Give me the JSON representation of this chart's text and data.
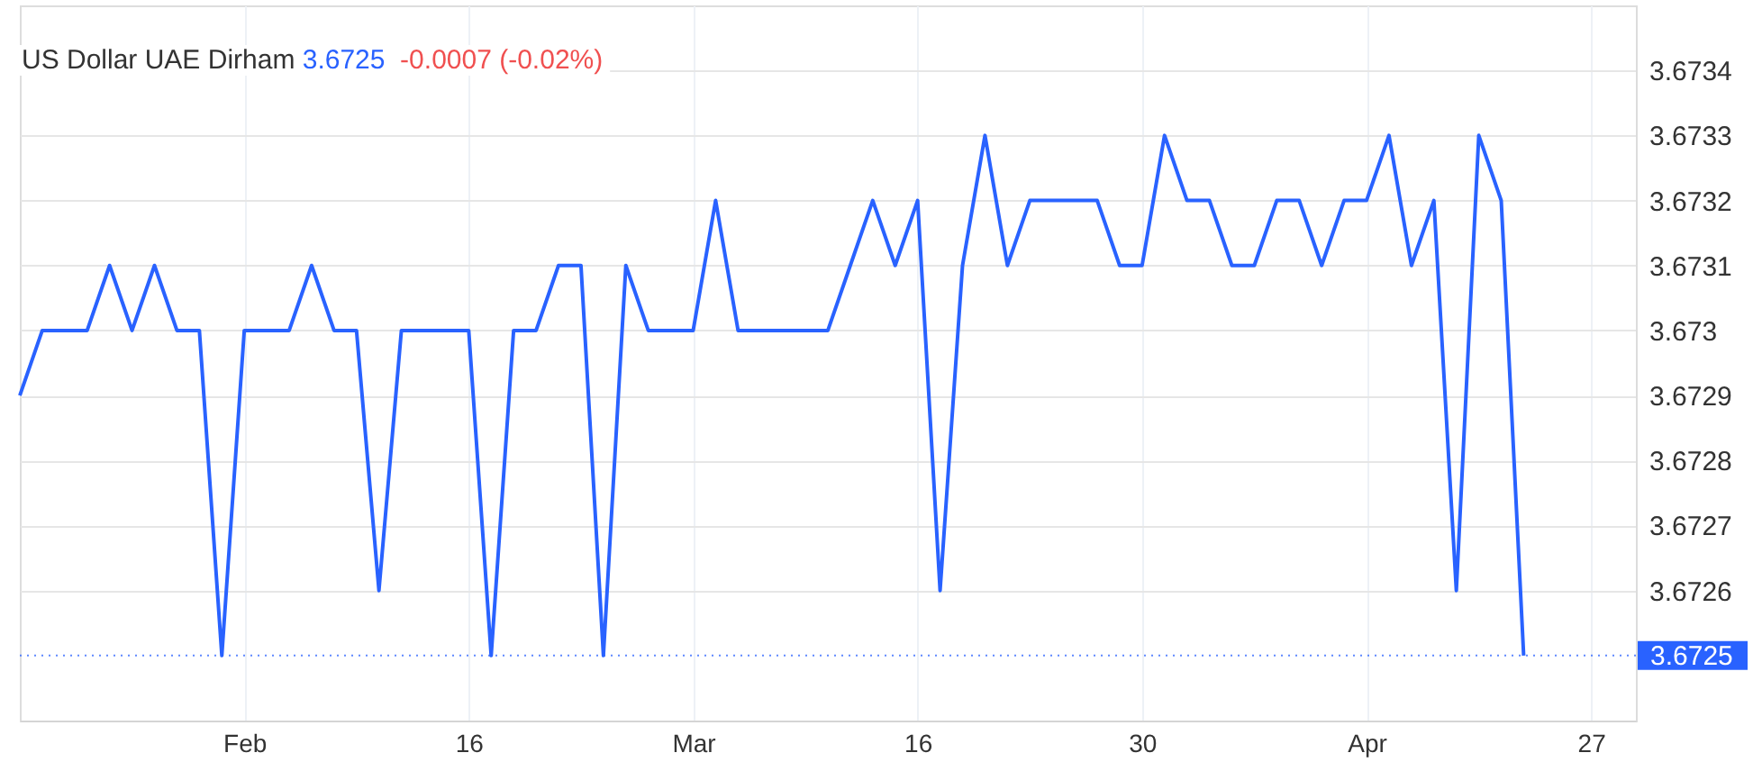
{
  "chart_data": {
    "type": "line",
    "title": "US Dollar UAE Dirham",
    "annotations": [
      "3.6725",
      "-0.0007 (-0.02%)"
    ],
    "categories": [
      null,
      null,
      null,
      null,
      null,
      null,
      null,
      null,
      null,
      null,
      "Feb",
      null,
      null,
      null,
      null,
      null,
      null,
      null,
      null,
      null,
      "16",
      null,
      null,
      null,
      null,
      null,
      null,
      null,
      null,
      null,
      "Mar",
      null,
      null,
      null,
      null,
      null,
      null,
      null,
      null,
      null,
      "16",
      null,
      null,
      null,
      null,
      null,
      null,
      null,
      null,
      null,
      "30",
      null,
      null,
      null,
      null,
      null,
      null,
      null,
      null,
      null,
      "Apr",
      null,
      null,
      null,
      null,
      null,
      null,
      null,
      null,
      null,
      "27"
    ],
    "series": [
      {
        "color": "#2962ff",
        "values": [
          3.6729,
          3.673,
          3.673,
          3.673,
          3.6731,
          3.673,
          3.6731,
          3.673,
          3.673,
          3.6725,
          3.673,
          3.673,
          3.673,
          3.6731,
          3.673,
          3.673,
          3.6726,
          3.673,
          3.673,
          3.673,
          3.673,
          3.6725,
          3.673,
          3.673,
          3.6731,
          3.6731,
          3.6725,
          3.6731,
          3.673,
          3.673,
          3.673,
          3.6732,
          3.673,
          3.673,
          3.673,
          3.673,
          3.673,
          3.6731,
          3.6732,
          3.6731,
          3.6732,
          3.6726,
          3.6731,
          3.6733,
          3.6731,
          3.6732,
          3.6732,
          3.6732,
          3.6732,
          3.6731,
          3.6731,
          3.6733,
          3.6732,
          3.6732,
          3.6731,
          3.6731,
          3.6732,
          3.6732,
          3.6731,
          3.6732,
          3.6732,
          3.6733,
          3.6731,
          3.6732,
          3.6726,
          3.6733,
          3.6732,
          3.6725,
          null,
          null,
          null
        ]
      }
    ],
    "ylim": [
      3.6724,
      3.6735
    ],
    "yticks": [
      3.6726,
      3.6727,
      3.6728,
      3.6729,
      3.673,
      3.6731,
      3.6732,
      3.6733,
      3.6734
    ],
    "ref_lines": [
      {
        "axis": "y",
        "value": 3.6725,
        "label": "3.6725",
        "color": "#2962ff",
        "line_style": "dotted"
      }
    ],
    "grid": true,
    "line_style": "solid"
  }
}
